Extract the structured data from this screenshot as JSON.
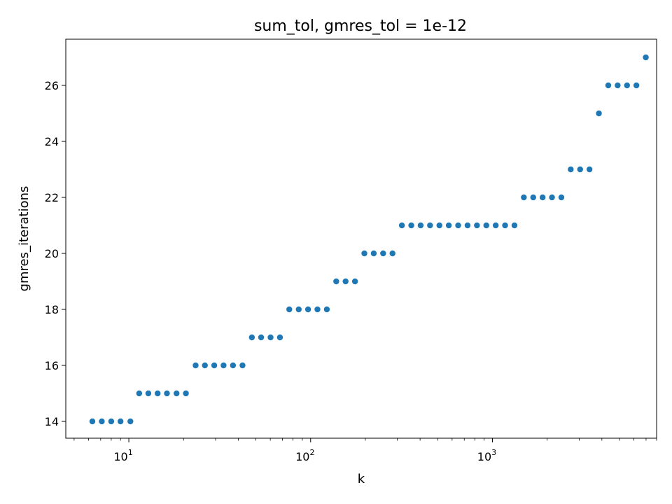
{
  "chart_data": {
    "type": "scatter",
    "title": "sum_tol, gmres_tol = 1e-12",
    "xlabel": "k",
    "ylabel": "gmres_iterations",
    "xscale": "log",
    "xlim": [
      4.5,
      8000
    ],
    "ylim": [
      13.4,
      27.65
    ],
    "grid": false,
    "legend": "none",
    "marker_color": "#1f77b4",
    "x_ticks": [
      {
        "value": 10,
        "base": "10",
        "exp": "1"
      },
      {
        "value": 100,
        "base": "10",
        "exp": "2"
      },
      {
        "value": 1000,
        "base": "10",
        "exp": "3"
      }
    ],
    "y_ticks": [
      {
        "value": 14,
        "label": "14"
      },
      {
        "value": 16,
        "label": "16"
      },
      {
        "value": 18,
        "label": "18"
      },
      {
        "value": 20,
        "label": "20"
      },
      {
        "value": 22,
        "label": "22"
      },
      {
        "value": 24,
        "label": "24"
      },
      {
        "value": 26,
        "label": "26"
      }
    ],
    "series": [
      {
        "x": [
          6.3,
          7.1,
          8.0,
          9.0,
          10.2,
          11.4,
          12.8,
          14.4,
          16.2,
          18.3,
          20.6,
          23.3,
          26.2,
          29.5,
          33.2,
          37.4,
          42.2,
          47.5,
          53.4,
          60.2,
          67.8,
          76.3,
          86.0,
          96.8,
          109.0,
          122.8,
          138.3,
          155.7,
          175.4,
          197.5,
          222.4,
          250.5,
          282.1,
          317.7,
          357.8,
          402.9,
          453.7,
          511.0,
          575.4,
          648.0,
          729.8,
          821.9,
          925.6,
          1042.4,
          1173.9,
          1322.0,
          1488.7,
          1676.6,
          1888.1,
          2126.3,
          2394.6,
          2696.7,
          3036.9,
          3420.1,
          3851.6,
          4337.5,
          4884.8,
          5501.1,
          6195.1,
          6976.8
        ],
        "y": [
          14,
          14,
          14,
          14,
          14,
          15,
          15,
          15,
          15,
          15,
          15,
          16,
          16,
          16,
          16,
          16,
          16,
          17,
          17,
          17,
          17,
          18,
          18,
          18,
          18,
          18,
          19,
          19,
          19,
          20,
          20,
          20,
          20,
          21,
          21,
          21,
          21,
          21,
          21,
          21,
          21,
          21,
          21,
          21,
          21,
          21,
          22,
          22,
          22,
          22,
          22,
          23,
          23,
          23,
          25,
          26,
          26,
          26,
          26,
          27
        ]
      }
    ]
  }
}
